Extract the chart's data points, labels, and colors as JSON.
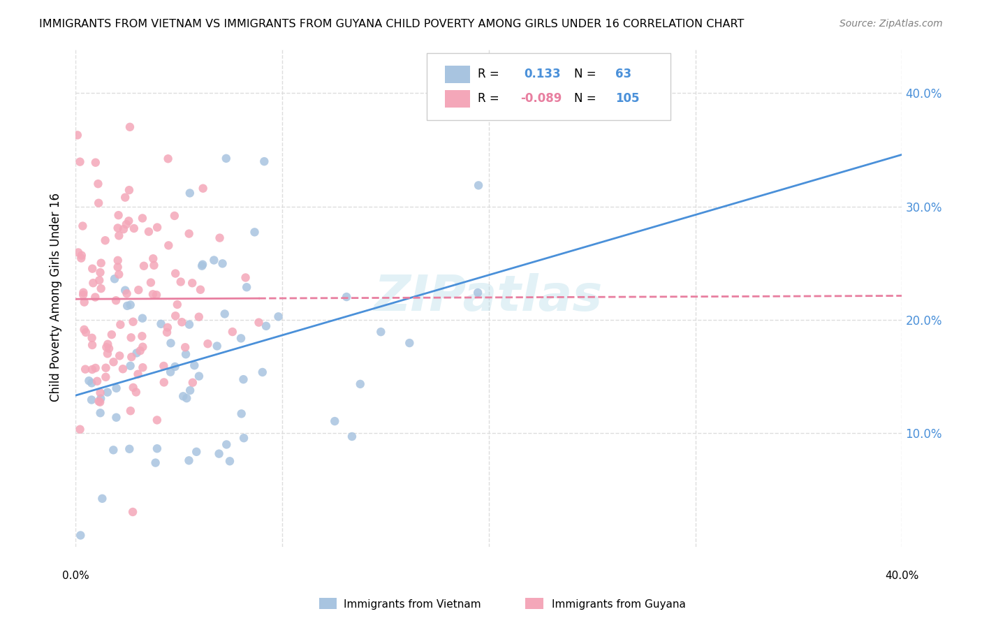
{
  "title": "IMMIGRANTS FROM VIETNAM VS IMMIGRANTS FROM GUYANA CHILD POVERTY AMONG GIRLS UNDER 16 CORRELATION CHART",
  "source": "Source: ZipAtlas.com",
  "ylabel": "Child Poverty Among Girls Under 16",
  "xlim": [
    0,
    0.4
  ],
  "ylim": [
    0,
    0.44
  ],
  "yticks": [
    0.1,
    0.2,
    0.3,
    0.4
  ],
  "ytick_labels": [
    "10.0%",
    "20.0%",
    "30.0%",
    "40.0%"
  ],
  "vietnam_R": 0.133,
  "vietnam_N": 63,
  "guyana_R": -0.089,
  "guyana_N": 105,
  "vietnam_color": "#a8c4e0",
  "guyana_color": "#f4a7b9",
  "vietnam_line_color": "#4a90d9",
  "guyana_line_color": "#e87fa0",
  "watermark": "ZIPatlas",
  "background_color": "#ffffff",
  "grid_color": "#dddddd"
}
